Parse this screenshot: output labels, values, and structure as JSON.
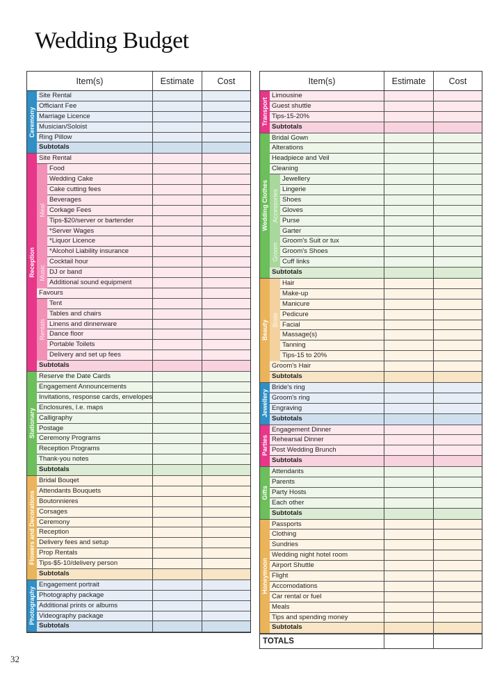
{
  "page": {
    "title": "Wedding Budget",
    "page_number": "32"
  },
  "headers": {
    "item": "Item(s)",
    "estimate": "Estimate",
    "cost": "Cost"
  },
  "colors": {
    "blue": {
      "bar": "#2f8fc6",
      "row": "#e6edf6",
      "sub": "#cfdfee"
    },
    "pink": {
      "bar": "#e8368a",
      "row": "#fde8ee",
      "sub": "#f9d2e0",
      "sublabel": "#f290b8"
    },
    "green": {
      "bar": "#6cbf5a",
      "row": "#eef6ea",
      "sub": "#dcecd4",
      "sublabel": "#a9d89c"
    },
    "orange": {
      "bar": "#ebb45a",
      "row": "#fdf4e6",
      "sub": "#f8e5c6",
      "sublabel": "#f4d2a0"
    }
  },
  "left_table": {
    "sections": [
      {
        "name": "Ceremony",
        "color": "blue",
        "items": [
          {
            "label": "Site Rental"
          },
          {
            "label": "Officiant Fee"
          },
          {
            "label": "Marriage Licence"
          },
          {
            "label": "Musician/Soloist"
          },
          {
            "label": "Ring Pillow"
          },
          {
            "label": "Subtotals",
            "subtotal": true
          }
        ]
      },
      {
        "name": "Reception",
        "color": "pink",
        "items": [
          {
            "label": "Site Rental"
          },
          {
            "group": "Meal",
            "items": [
              "Food",
              "Wedding Cake",
              "Cake cutting fees",
              "Beverages",
              "Corkage Fees",
              "Tips-$20/server or bartender",
              "*Server Wages",
              "*Liquor Licence",
              "*Alcohol Liability insurance"
            ]
          },
          {
            "group": "Music",
            "items": [
              "Cocktail hour",
              "DJ or band",
              "Additional sound equipment"
            ]
          },
          {
            "label": "Favours"
          },
          {
            "group": "Rentals",
            "items": [
              "Tent",
              "Tables and chairs",
              "Linens and dinnerware",
              "Dance floor",
              "Portable Toilets",
              "Delivery and set up fees"
            ]
          },
          {
            "label": "Subtotals",
            "subtotal": true
          }
        ]
      },
      {
        "name": "Stationary",
        "color": "green",
        "items": [
          {
            "label": "Reserve the Date Cards"
          },
          {
            "label": "Engagement Announcements"
          },
          {
            "label": "Invitations, response cards, envelopes"
          },
          {
            "label": "Enclosures, I.e. maps"
          },
          {
            "label": "Calligraphy"
          },
          {
            "label": "Postage"
          },
          {
            "label": "Ceremony Programs"
          },
          {
            "label": "Reception Programs"
          },
          {
            "label": "Thank-you notes"
          },
          {
            "label": "Subtotals",
            "subtotal": true
          }
        ]
      },
      {
        "name": "Flowers and Decorations",
        "color": "orange",
        "items": [
          {
            "label": "Bridal Bouqet"
          },
          {
            "label": "Attendants Bouquets"
          },
          {
            "label": "Boutonnieres"
          },
          {
            "label": "Corsages"
          },
          {
            "label": "Ceremony"
          },
          {
            "label": "Reception"
          },
          {
            "label": "Delivery fees and setup"
          },
          {
            "label": "Prop Rentals"
          },
          {
            "label": "Tips-$5-10/delivery person"
          },
          {
            "label": "Subtotals",
            "subtotal": true
          }
        ]
      },
      {
        "name": "Photography",
        "color": "blue",
        "items": [
          {
            "label": "Engagement portrait"
          },
          {
            "label": "Photography package"
          },
          {
            "label": "Additional prints or albums"
          },
          {
            "label": "Videography package"
          },
          {
            "label": "Subtotals",
            "subtotal": true
          }
        ]
      }
    ]
  },
  "right_table": {
    "sections": [
      {
        "name": "Transport",
        "color": "pink",
        "items": [
          {
            "label": "Limousine"
          },
          {
            "label": "Guest shuttle"
          },
          {
            "label": "Tips-15-20%"
          },
          {
            "label": "Subtotals",
            "subtotal": true
          }
        ]
      },
      {
        "name": "Wedding Clothes",
        "color": "green",
        "items": [
          {
            "label": "Bridal Gown"
          },
          {
            "label": "Alterations"
          },
          {
            "label": "Headpiece and Veil"
          },
          {
            "label": "Cleaning"
          },
          {
            "group": "Accessories",
            "items": [
              "Jewellery",
              "Lingerie",
              "Shoes",
              "Gloves",
              "Purse",
              "Garter"
            ]
          },
          {
            "group": "Groom",
            "items": [
              "Groom's Suit or tux",
              "Groom's Shoes",
              "Cuff links"
            ]
          },
          {
            "label": "Subtotals",
            "subtotal": true
          }
        ]
      },
      {
        "name": "Beauty",
        "color": "orange",
        "items": [
          {
            "group": "Bride",
            "items": [
              "Hair",
              "Make-up",
              "Manicure",
              "Pedicure",
              "Facial",
              "Massage(s)",
              "Tanning",
              "Tips-15 to 20%"
            ]
          },
          {
            "label": "Groom's Hair"
          },
          {
            "label": "Subtotals",
            "subtotal": true
          }
        ]
      },
      {
        "name": "Jewellery",
        "color": "blue",
        "items": [
          {
            "label": "Bride's ring"
          },
          {
            "label": "Groom's ring"
          },
          {
            "label": "Engraving"
          },
          {
            "label": "Subtotals",
            "subtotal": true
          }
        ]
      },
      {
        "name": "Parties",
        "color": "pink",
        "items": [
          {
            "label": "Engagement Dinner"
          },
          {
            "label": "Rehearsal Dinner"
          },
          {
            "label": "Post Wedding Brunch"
          },
          {
            "label": "Subtotals",
            "subtotal": true
          }
        ]
      },
      {
        "name": "Gifts",
        "color": "green",
        "items": [
          {
            "label": "Attendants"
          },
          {
            "label": "Parents"
          },
          {
            "label": "Party Hosts"
          },
          {
            "label": "Each other"
          },
          {
            "label": "Subtotals",
            "subtotal": true
          }
        ]
      },
      {
        "name": "Honeymoon",
        "color": "orange",
        "items": [
          {
            "label": "Passports"
          },
          {
            "label": "Clothing"
          },
          {
            "label": "Sundries"
          },
          {
            "label": "Wedding night hotel room"
          },
          {
            "label": "Airport Shuttle"
          },
          {
            "label": "Flight"
          },
          {
            "label": "Accomodations"
          },
          {
            "label": "Car rental or fuel"
          },
          {
            "label": "Meals"
          },
          {
            "label": "Tips and spending money"
          },
          {
            "label": "Subtotals",
            "subtotal": true
          }
        ]
      }
    ],
    "totals_label": "TOTALS"
  }
}
